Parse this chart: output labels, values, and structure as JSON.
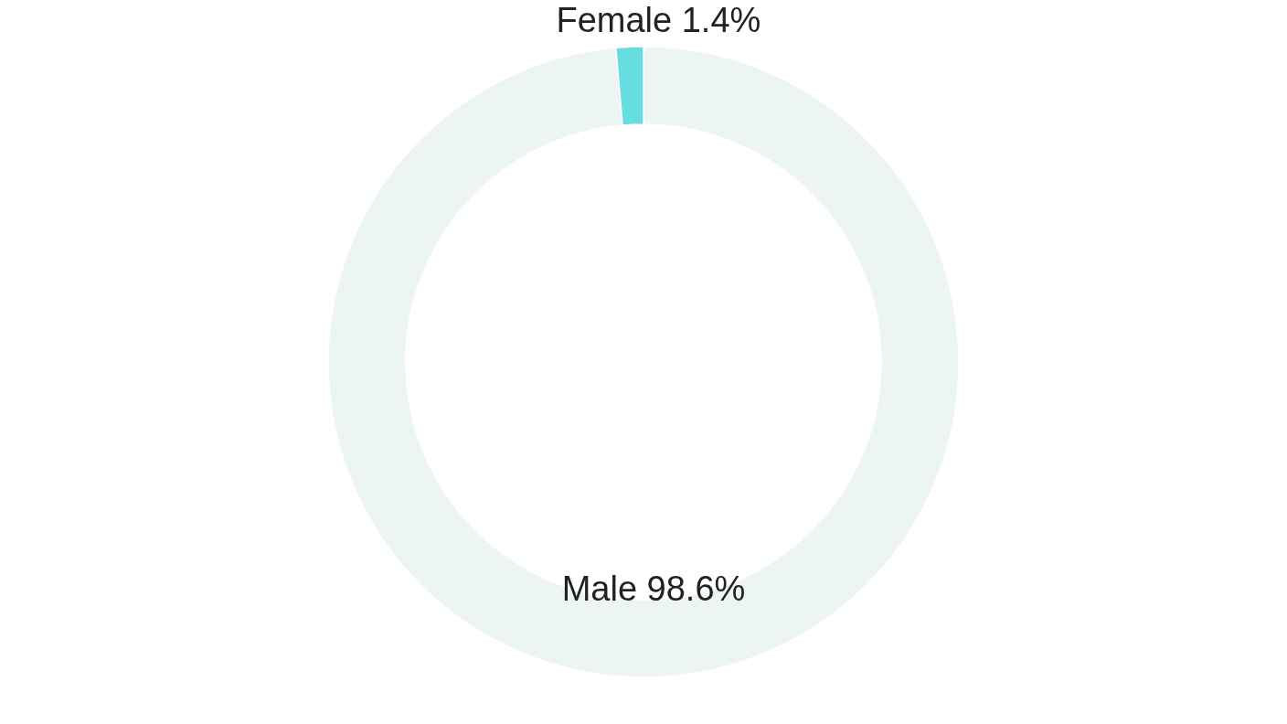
{
  "chart_data": {
    "type": "donut",
    "categories": [
      "Male",
      "Female"
    ],
    "values": [
      98.6,
      1.4
    ],
    "colors": [
      "#edf5f4",
      "#66dde0"
    ],
    "value_labels": [
      "98.6%",
      "1.4%"
    ]
  }
}
